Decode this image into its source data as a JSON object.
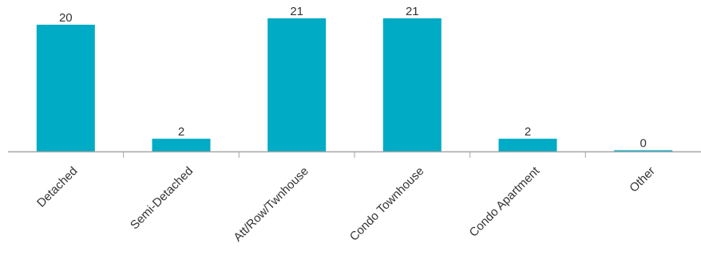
{
  "chart_data": {
    "type": "bar",
    "categories": [
      "Detached",
      "Semi-Detached",
      "Att/Row/Twnhouse",
      "Condo Townhouse",
      "Condo Apartment",
      "Other"
    ],
    "values": [
      20,
      2,
      21,
      21,
      2,
      0
    ],
    "data_labels": [
      "20",
      "2",
      "21",
      "21",
      "2",
      "0"
    ],
    "title": "",
    "xlabel": "",
    "ylabel": "",
    "ylim": [
      0,
      21
    ],
    "grid": false,
    "legend": "none",
    "colors": {
      "bar": "#00ABC5",
      "axis": "#A6A6A6",
      "text": "#333333"
    }
  }
}
